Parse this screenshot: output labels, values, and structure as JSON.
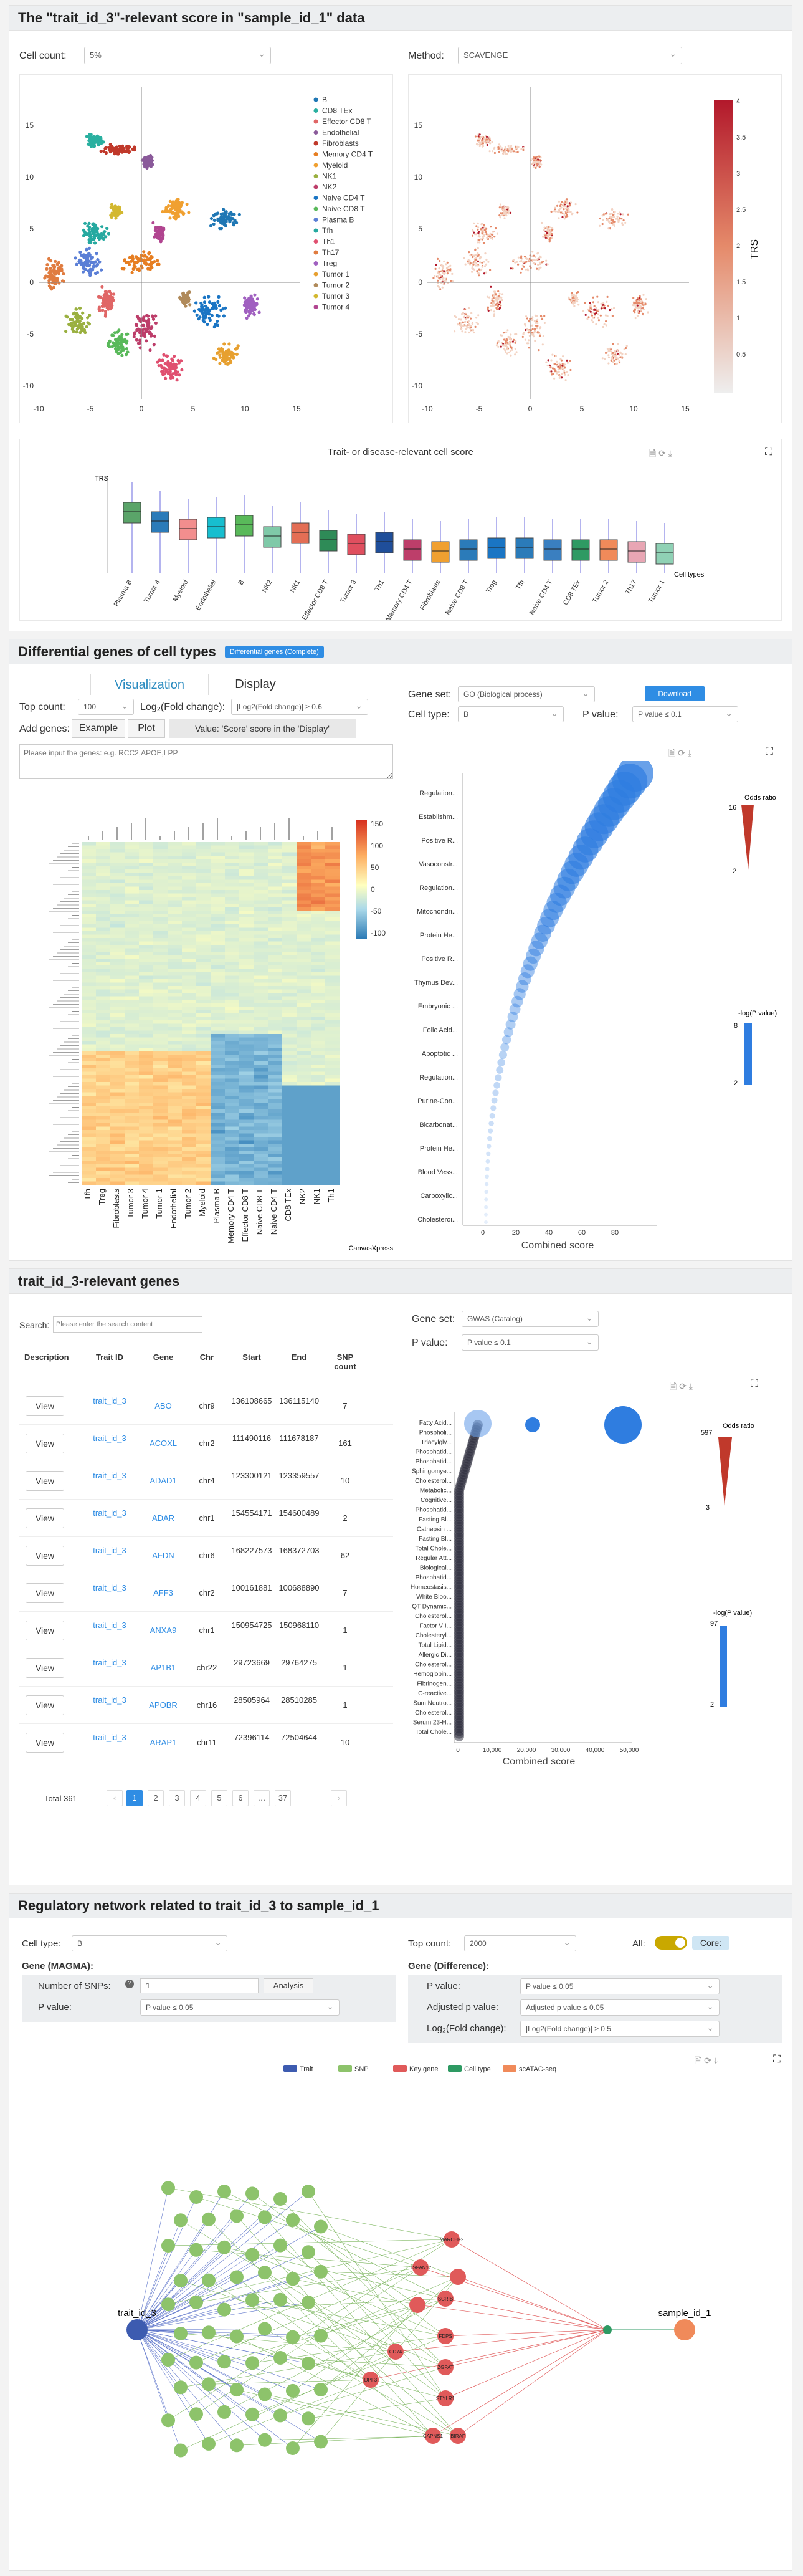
{
  "sec1": {
    "title": "The \"trait_id_3\"-relevant score in \"sample_id_1\" data",
    "cellcount_label": "Cell count:",
    "cellcount_value": "5%",
    "method_label": "Method:",
    "method_value": "SCAVENGE",
    "trs_label": "TRS",
    "trs_ticks": [
      "4",
      "3.5",
      "3",
      "2.5",
      "2",
      "1.5",
      "1",
      "0.5"
    ],
    "x_ticks": [
      "-10",
      "-5",
      "0",
      "5",
      "10",
      "15"
    ],
    "y_ticks": [
      "15",
      "10",
      "5",
      "0",
      "-5",
      "-10"
    ],
    "legend": [
      "B",
      "CD8 TEx",
      "Effector CD8 T",
      "Endothelial",
      "Fibroblasts",
      "Memory CD4 T",
      "Myeloid",
      "NK1",
      "NK2",
      "Naive CD4 T",
      "Naive CD8 T",
      "Plasma B",
      "Tfh",
      "Th1",
      "Th17",
      "Treg",
      "Tumor 1",
      "Tumor 2",
      "Tumor 3",
      "Tumor 4"
    ],
    "legend_colors": [
      "#1f77b4",
      "#2ab0a0",
      "#e06666",
      "#8a5a9a",
      "#c0392b",
      "#e67e22",
      "#f0a030",
      "#9ab040",
      "#bd3e6a",
      "#1a75c4",
      "#59b95a",
      "#5b7fd6",
      "#26a9a0",
      "#e05070",
      "#e07c40",
      "#a060c0",
      "#e7a030",
      "#b08a5a",
      "#d3b830",
      "#b14590"
    ],
    "box_title": "Trait- or disease-relevant cell score",
    "box_ylabel": "TRS",
    "box_xlabel": "Cell types",
    "box_cats": [
      "Plasma B",
      "Tumor 4",
      "Myeloid",
      "Endothelial",
      "B",
      "NK2",
      "NK1",
      "Effector CD8 T",
      "Tumor 3",
      "Th1",
      "Memory CD4 T",
      "Fibroblasts",
      "Naive CD8 T",
      "Treg",
      "Tfh",
      "Naive CD4 T",
      "CD8 TEx",
      "Tumor 2",
      "Th17",
      "Tumor 1"
    ]
  },
  "sec2": {
    "title": "Differential genes of cell types",
    "badge": "Differential genes (Complete)",
    "tab_vis": "Visualization",
    "tab_disp": "Display",
    "topcount_label": "Top count:",
    "topcount_value": "100",
    "log2_label": "Log₂(Fold change):",
    "log2_value": "|Log2(Fold change)| ≥ 0.6",
    "addgenes_label": "Add genes:",
    "example_btn": "Example",
    "plot_btn": "Plot",
    "value_hint": "Value: 'Score' score in the 'Display'",
    "genes_placeholder": "Please input the genes: e.g. RCC2,APOE,LPP",
    "geneset_label": "Gene set:",
    "geneset_value": "GO (Biological process)",
    "download_btn": "Download",
    "celltype_label": "Cell type:",
    "celltype_value": "B",
    "pvalue_label": "P value:",
    "pvalue_value": "P value ≤ 0.1",
    "heat_scale": [
      "150",
      "100",
      "50",
      "0",
      "-50",
      "-100"
    ],
    "heat_cols": [
      "Tfh",
      "Treg",
      "Fibroblasts",
      "Tumor 3",
      "Tumor 4",
      "Tumor 1",
      "Endothelial",
      "Tumor 2",
      "Myeloid",
      "Plasma B",
      "Memory CD4 T",
      "Effector CD8 T",
      "Naive CD8 T",
      "Naive CD4 T",
      "CD8 TEx",
      "NK2",
      "NK1",
      "Th1"
    ],
    "heat_brand": "CanvasXpress",
    "bubble_terms": [
      "Regulation...",
      "Establishm...",
      "Positive R...",
      "Vasoconstr...",
      "Regulation...",
      "Mitochondri...",
      "Protein He...",
      "Positive R...",
      "Thymus Dev...",
      "Embryonic ...",
      "Folic Acid...",
      "Apoptotic ...",
      "Regulation...",
      "Purine-Con...",
      "Bicarbonat...",
      "Protein He...",
      "Blood Vess...",
      "Carboxylic...",
      "Cholesteroi..."
    ],
    "bubble_x_ticks": [
      "0",
      "20",
      "40",
      "60",
      "80"
    ],
    "bubble_xlabel": "Combined score",
    "odds_label": "Odds ratio",
    "odds_ticks": [
      "16",
      "2"
    ],
    "logp_label": "-log(P value)",
    "logp_ticks": [
      "8",
      "2"
    ]
  },
  "sec3": {
    "title": "trait_id_3-relevant genes",
    "search_label": "Search:",
    "search_placeholder": "Please enter the search content",
    "headers": [
      "Description",
      "Trait ID",
      "Gene",
      "Chr",
      "Start",
      "End",
      "SNP count"
    ],
    "rows": [
      [
        "View",
        "trait_id_3",
        "ABO",
        "chr9",
        "136108665",
        "136115140",
        "7"
      ],
      [
        "View",
        "trait_id_3",
        "ACOXL",
        "chr2",
        "111490116",
        "111678187",
        "161"
      ],
      [
        "View",
        "trait_id_3",
        "ADAD1",
        "chr4",
        "123300121",
        "123359557",
        "10"
      ],
      [
        "View",
        "trait_id_3",
        "ADAR",
        "chr1",
        "154554171",
        "154600489",
        "2"
      ],
      [
        "View",
        "trait_id_3",
        "AFDN",
        "chr6",
        "168227573",
        "168372703",
        "62"
      ],
      [
        "View",
        "trait_id_3",
        "AFF3",
        "chr2",
        "100161881",
        "100688890",
        "7"
      ],
      [
        "View",
        "trait_id_3",
        "ANXA9",
        "chr1",
        "150954725",
        "150968110",
        "1"
      ],
      [
        "View",
        "trait_id_3",
        "AP1B1",
        "chr22",
        "29723669",
        "29764275",
        "1"
      ],
      [
        "View",
        "trait_id_3",
        "APOBR",
        "chr16",
        "28505964",
        "28510285",
        "1"
      ],
      [
        "View",
        "trait_id_3",
        "ARAP1",
        "chr11",
        "72396114",
        "72504644",
        "10"
      ]
    ],
    "total": "Total 361",
    "pages": [
      "1",
      "2",
      "3",
      "4",
      "5",
      "6",
      "…",
      "37"
    ],
    "geneset_label": "Gene set:",
    "geneset_value": "GWAS (Catalog)",
    "pvalue_label": "P value:",
    "pvalue_value": "P value ≤ 0.1",
    "terms": [
      "Fatty Acid...",
      "Phospholi...",
      "Triacylgly...",
      "Phosphatid...",
      "Phosphatid...",
      "Sphingomye...",
      "Cholesterol...",
      "Metabolic...",
      "Cognitive...",
      "Phosphatid...",
      "Fasting Bl...",
      "Cathepsin ...",
      "Fasting Bl...",
      "Total Chole...",
      "Regular Att...",
      "Biological...",
      "Phosphatid...",
      "Homeostasis...",
      "White Bloo...",
      "QT Dynamic...",
      "Cholesterol...",
      "Factor VII...",
      "Cholesteryl...",
      "Total Lipid...",
      "Allergic Di...",
      "Cholesterol...",
      "Hemoglobin...",
      "Fibrinogen...",
      "C-reactive...",
      "Sum Neutro...",
      "Cholesterol...",
      "Serum 23-H...",
      "Total Chole..."
    ],
    "x_ticks": [
      "0",
      "10,000",
      "20,000",
      "30,000",
      "40,000",
      "50,000"
    ],
    "xlabel": "Combined score",
    "odds_label": "Odds ratio",
    "odds_ticks": [
      "597",
      "3"
    ],
    "logp_label": "-log(P value)",
    "logp_ticks": [
      "97",
      "2"
    ]
  },
  "sec4": {
    "title": "Regulatory network related to trait_id_3 to sample_id_1",
    "celltype_label": "Cell type:",
    "celltype_value": "B",
    "topcount_label": "Top count:",
    "topcount_value": "2000",
    "all_label": "All:",
    "core_label": "Core:",
    "magma_label": "Gene (MAGMA):",
    "nsnps_label": "Number of SNPs:",
    "nsnps_value": "1",
    "analysis_btn": "Analysis",
    "pvalue_label": "P value:",
    "pvalue_value": "P value ≤ 0.05",
    "diff_label": "Gene (Difference):",
    "adjp_label": "Adjusted p value:",
    "adjp_value": "Adjusted p value ≤ 0.05",
    "log2_label": "Log₂(Fold change):",
    "log2_value": "|Log2(Fold change)| ≥ 0.5",
    "legend": [
      "Trait",
      "SNP",
      "Key gene",
      "Cell type",
      "scATAC-seq"
    ],
    "legend_colors": [
      "#3d5bb0",
      "#8dc36b",
      "#e05a5a",
      "#2e9a63",
      "#f08a5a"
    ],
    "trait_node": "trait_id_3",
    "sample_node": "sample_id_1",
    "gene_nodes": [
      "MARCHF2",
      "TSPAN17",
      "SCRIB",
      "FDPS",
      "ZGPAT",
      "STYLR1",
      "CD74",
      "DPF3",
      "CAPNS1",
      "BIRAF"
    ]
  }
}
